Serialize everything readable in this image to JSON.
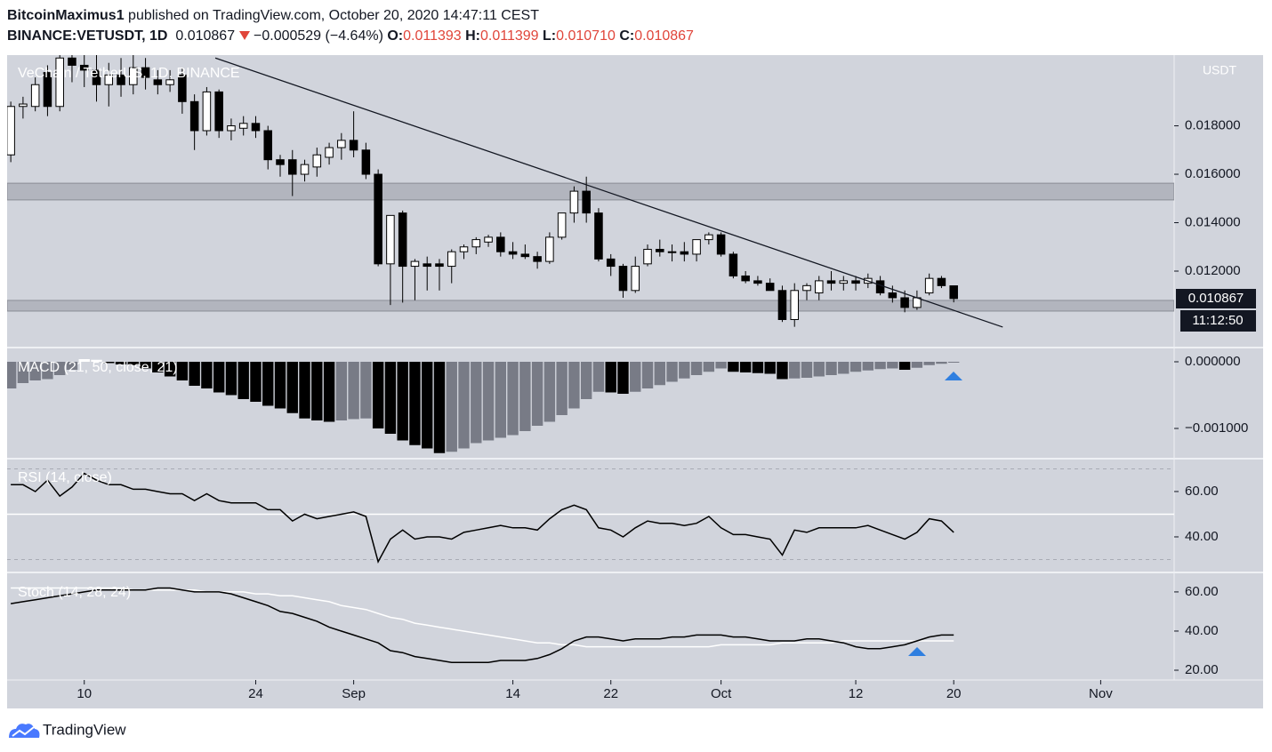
{
  "header": {
    "author": "BitcoinMaximus1",
    "published": "published on TradingView.com, October 20, 2020 14:47:11 CEST",
    "symbol": "BINANCE:VETUSDT, 1D",
    "last": "0.010867",
    "change": "−0.000529 (−4.64%)",
    "ohlc_labels": [
      "O:",
      "H:",
      "L:",
      "C:"
    ],
    "ohlc": [
      "0.011393",
      "0.011399",
      "0.010710",
      "0.010867"
    ],
    "countdown": "11:12:50",
    "currency": "USDT"
  },
  "footer": {
    "brand": "TradingView"
  },
  "chart_data": {
    "type": "candlestick",
    "title": "VeChain / TetherUS, 1D, BINANCE",
    "open": [
      0.0168,
      0.0188,
      0.0188,
      0.0202,
      0.0188,
      0.0208,
      0.0205,
      0.0203,
      0.0197,
      0.0201,
      0.0197,
      0.0204,
      0.0199,
      0.0197,
      0.0201,
      0.019,
      0.0178,
      0.0194,
      0.0178,
      0.0179,
      0.0181,
      0.0178,
      0.0166,
      0.0166,
      0.016,
      0.0163,
      0.0167,
      0.0171,
      0.0174,
      0.017,
      0.016,
      0.0123,
      0.0144,
      0.0122,
      0.0123,
      0.0123,
      0.0122,
      0.0128,
      0.013,
      0.0132,
      0.0134,
      0.0128,
      0.0127,
      0.0126,
      0.0124,
      0.0134,
      0.0144,
      0.0153,
      0.0144,
      0.0125,
      0.0122,
      0.0112,
      0.0123,
      0.0129,
      0.0128,
      0.0128,
      0.0127,
      0.0133,
      0.0135,
      0.0127,
      0.0118,
      0.0116,
      0.0115,
      0.0112,
      0.01,
      0.0112,
      0.0111,
      0.0116,
      0.0115,
      0.0116,
      0.0115,
      0.0116,
      0.0111,
      0.0109,
      0.0105,
      0.0111,
      0.0117,
      0.011393
    ],
    "high": [
      0.019,
      0.0192,
      0.02,
      0.0205,
      0.0212,
      0.0212,
      0.0214,
      0.021,
      0.0206,
      0.0208,
      0.021,
      0.0208,
      0.0203,
      0.0203,
      0.0204,
      0.0193,
      0.0196,
      0.0195,
      0.0183,
      0.0184,
      0.0184,
      0.018,
      0.0168,
      0.017,
      0.0166,
      0.0171,
      0.0173,
      0.0177,
      0.0186,
      0.0173,
      0.0162,
      0.0143,
      0.0145,
      0.0125,
      0.0126,
      0.0125,
      0.0129,
      0.0131,
      0.0134,
      0.0135,
      0.0136,
      0.0132,
      0.0131,
      0.0128,
      0.0136,
      0.0144,
      0.0155,
      0.0159,
      0.0146,
      0.0127,
      0.0123,
      0.0126,
      0.0131,
      0.0133,
      0.0131,
      0.0132,
      0.0133,
      0.0136,
      0.0136,
      0.0128,
      0.012,
      0.0118,
      0.0117,
      0.0114,
      0.0115,
      0.0115,
      0.0118,
      0.012,
      0.0118,
      0.0118,
      0.0119,
      0.0118,
      0.0114,
      0.0112,
      0.0112,
      0.0119,
      0.0118,
      0.011399
    ],
    "low": [
      0.0165,
      0.0183,
      0.0186,
      0.0184,
      0.0186,
      0.0198,
      0.0196,
      0.019,
      0.0188,
      0.0192,
      0.0193,
      0.0195,
      0.0193,
      0.0194,
      0.0185,
      0.017,
      0.0176,
      0.0175,
      0.0174,
      0.0176,
      0.0175,
      0.0162,
      0.0159,
      0.0151,
      0.0157,
      0.0159,
      0.0164,
      0.0166,
      0.0167,
      0.0158,
      0.0122,
      0.0106,
      0.0107,
      0.0108,
      0.0112,
      0.0112,
      0.0115,
      0.0125,
      0.0127,
      0.013,
      0.0126,
      0.0125,
      0.0125,
      0.0121,
      0.0123,
      0.0133,
      0.014,
      0.014,
      0.0124,
      0.0118,
      0.0109,
      0.0111,
      0.0122,
      0.0126,
      0.0124,
      0.0124,
      0.0124,
      0.0131,
      0.0126,
      0.0117,
      0.0115,
      0.0114,
      0.0112,
      0.0099,
      0.0097,
      0.0108,
      0.0108,
      0.0112,
      0.0112,
      0.0112,
      0.0113,
      0.011,
      0.0107,
      0.0103,
      0.0104,
      0.011,
      0.0113,
      0.01071
    ],
    "close": [
      0.0188,
      0.0189,
      0.0197,
      0.0188,
      0.0208,
      0.0205,
      0.0203,
      0.0197,
      0.0201,
      0.0197,
      0.0204,
      0.02,
      0.0197,
      0.0199,
      0.019,
      0.0178,
      0.0194,
      0.0178,
      0.018,
      0.0181,
      0.0178,
      0.0166,
      0.0164,
      0.016,
      0.0164,
      0.0168,
      0.0171,
      0.0174,
      0.017,
      0.016,
      0.0123,
      0.0143,
      0.0122,
      0.0124,
      0.0122,
      0.0122,
      0.0128,
      0.013,
      0.0133,
      0.0134,
      0.0128,
      0.0127,
      0.0126,
      0.0124,
      0.0134,
      0.0144,
      0.0153,
      0.0144,
      0.0125,
      0.0122,
      0.0112,
      0.0122,
      0.0129,
      0.0128,
      0.0128,
      0.0127,
      0.0133,
      0.0135,
      0.0127,
      0.0118,
      0.0116,
      0.0115,
      0.0112,
      0.01,
      0.0112,
      0.0114,
      0.0116,
      0.0115,
      0.0116,
      0.0115,
      0.0117,
      0.0111,
      0.0109,
      0.0105,
      0.0109,
      0.0117,
      0.0114,
      0.010867
    ],
    "xlim": [
      -0.3,
      95
    ],
    "xticks": [
      {
        "value": 6,
        "label": "10"
      },
      {
        "value": 20,
        "label": "24"
      },
      {
        "value": 28,
        "label": "Sep"
      },
      {
        "value": 41,
        "label": "14"
      },
      {
        "value": 49,
        "label": "22"
      },
      {
        "value": 58,
        "label": "Oct"
      },
      {
        "value": 69,
        "label": "12"
      },
      {
        "value": 77,
        "label": "20"
      },
      {
        "value": 89,
        "label": "Nov"
      }
    ],
    "ylim": [
      0.00888,
      0.02092
    ],
    "yticks": [
      {
        "value": 0.018,
        "label": "0.018000"
      },
      {
        "value": 0.016,
        "label": "0.016000"
      },
      {
        "value": 0.014,
        "label": "0.014000"
      },
      {
        "value": 0.012,
        "label": "0.012000"
      }
    ],
    "zones": [
      [
        0.01494,
        0.01563
      ],
      [
        0.01035,
        0.01079
      ]
    ],
    "trendline": {
      "x": [
        16.7,
        81
      ],
      "y": [
        0.0208,
        0.00969
      ]
    },
    "up_color": "#ffffff",
    "down_color": "#000000",
    "macd": {
      "title": "MACD (21, 50, close, 21)",
      "values": [
        -0.0004,
        -0.00032,
        -0.00028,
        -0.00026,
        -0.0002,
        -0.00012,
        4e-05,
        3e-05,
        -2e-05,
        -4e-05,
        -5e-05,
        -0.0001,
        -0.00016,
        -0.00022,
        -0.00028,
        -0.00036,
        -0.0004,
        -0.00046,
        -0.0005,
        -0.00056,
        -0.0006,
        -0.00066,
        -0.0007,
        -0.00077,
        -0.00085,
        -0.00088,
        -0.0009,
        -0.00088,
        -0.00086,
        -0.00085,
        -0.001,
        -0.00108,
        -0.00118,
        -0.00125,
        -0.0013,
        -0.00137,
        -0.00135,
        -0.0013,
        -0.00122,
        -0.00118,
        -0.00114,
        -0.0011,
        -0.00104,
        -0.00096,
        -0.0009,
        -0.0008,
        -0.0007,
        -0.00056,
        -0.00045,
        -0.00046,
        -0.00048,
        -0.00045,
        -0.0004,
        -0.00035,
        -0.0003,
        -0.00025,
        -0.0002,
        -0.00015,
        -0.0001,
        -0.00015,
        -0.00016,
        -0.00017,
        -0.00018,
        -0.00026,
        -0.00025,
        -0.00024,
        -0.00022,
        -0.0002,
        -0.00018,
        -0.00015,
        -0.00013,
        -0.00011,
        -0.0001,
        -0.00012,
        -9e-05,
        -5e-05,
        -3e-05,
        -1e-05
      ],
      "ylim": [
        -0.00144,
        0.0002
      ],
      "yticks": [
        {
          "value": 0,
          "label": "0.000000"
        },
        {
          "value": -0.001,
          "label": "−0.001000"
        }
      ]
    },
    "rsi": {
      "title": "RSI (14, close)",
      "values": [
        63,
        63,
        60,
        65,
        58,
        62,
        68,
        65,
        63,
        63,
        61,
        61,
        60,
        59,
        59,
        56,
        59,
        56,
        55,
        55,
        55,
        52,
        52,
        47,
        50,
        48,
        49,
        50,
        51,
        49,
        29,
        39,
        43,
        39,
        40,
        40,
        39,
        42,
        43,
        44,
        45,
        44,
        44,
        43,
        48,
        52,
        54,
        52,
        44,
        43,
        40,
        44,
        47,
        46,
        46,
        45,
        46,
        49,
        44,
        41,
        41,
        40,
        39,
        32,
        43,
        42,
        44,
        44,
        44,
        44,
        45,
        43,
        41,
        39,
        42,
        48,
        47,
        42
      ],
      "ylim": [
        24.7,
        74.1
      ],
      "yticks": [
        {
          "value": 60,
          "label": "60.00"
        },
        {
          "value": 40,
          "label": "40.00"
        }
      ],
      "levels": [
        70,
        50,
        30
      ]
    },
    "stoch": {
      "title": "Stoch (14, 28, 24)",
      "k": [
        54,
        55,
        56,
        57,
        58,
        59,
        60,
        61,
        61,
        61,
        61,
        61,
        62,
        62,
        61,
        60,
        60,
        60,
        59,
        57,
        55,
        53,
        50,
        49,
        47,
        45,
        42,
        40,
        38,
        36,
        34,
        30,
        29,
        27,
        26,
        25,
        24,
        24,
        24,
        24,
        25,
        25,
        25,
        26,
        28,
        31,
        35,
        37,
        37,
        36,
        35,
        36,
        36,
        36,
        37,
        37,
        38,
        38,
        38,
        37,
        37,
        36,
        35,
        35,
        35,
        36,
        36,
        35,
        34,
        32,
        31,
        31,
        32,
        33,
        35,
        37,
        38,
        38
      ],
      "d": [
        62,
        62,
        62,
        62,
        62,
        62,
        62,
        62,
        62,
        62,
        61,
        61,
        61,
        61,
        61,
        61,
        60,
        60,
        60,
        60,
        59,
        59,
        58,
        58,
        57,
        56,
        55,
        53,
        52,
        51,
        49,
        47,
        46,
        44,
        43,
        42,
        41,
        40,
        39,
        38,
        37,
        36,
        35,
        34,
        34,
        33,
        33,
        32,
        32,
        32,
        32,
        32,
        32,
        32,
        32,
        32,
        32,
        32,
        33,
        33,
        33,
        33,
        33,
        34,
        34,
        34,
        34,
        34,
        35,
        35,
        35,
        35,
        35,
        35,
        35,
        35,
        35,
        35
      ],
      "ylim": [
        15,
        69.5
      ],
      "yticks": [
        {
          "value": 60,
          "label": "60.00"
        },
        {
          "value": 40,
          "label": "40.00"
        },
        {
          "value": 20,
          "label": "20.00"
        }
      ]
    }
  }
}
